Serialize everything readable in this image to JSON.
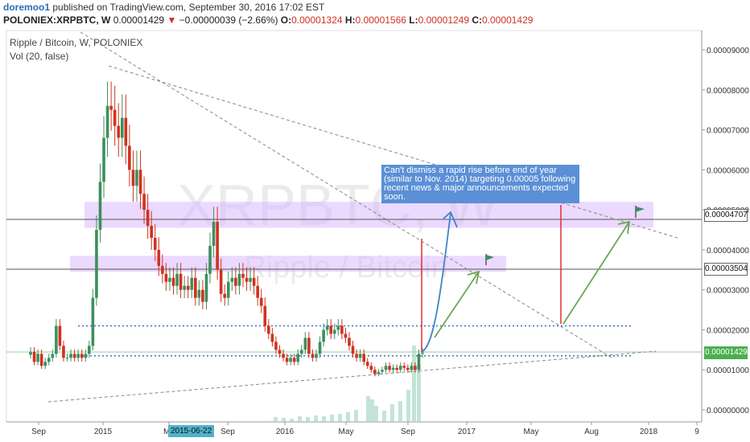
{
  "header": {
    "user": "doremoo1",
    "published": "published on TradingView.com, September 30, 2016 17:02 EST",
    "symbol": "POLONIEX:XRPBTC, W",
    "last": "0.00001429",
    "change_arrow": "▼",
    "change": "−0.00000039 (−2.66%)",
    "o_label": "O:",
    "o": "0.00001324",
    "h_label": "H:",
    "h": "0.00001566",
    "l_label": "L:",
    "l": "0.00001249",
    "c_label": "C:",
    "c": "0.00001429"
  },
  "legend": {
    "title": "Ripple / Bitcoin, W, POLONIEX",
    "indicator": "Vol (20, false)"
  },
  "watermark": {
    "symbol": "XRPBTC, W",
    "name": "Ripple / Bitcoin"
  },
  "annotation": "Can't dismiss a rapid rise before end of year (similar to Nov. 2014) targeting 0.00005 following recent news & major announcements expected soon.",
  "price_labels": [
    {
      "value": "0.00004707",
      "style": "plain"
    },
    {
      "value": "0.00003504",
      "style": "plain"
    },
    {
      "value": "0.00001429",
      "style": "green"
    }
  ],
  "x_highlight": "2015-06-22",
  "colors": {
    "up": "#3d8f5d",
    "down": "#d0321f",
    "zone": "#d9b3ff",
    "volume": "#a9d9c4",
    "dotted": "#3f6fc8",
    "arrow_green": "#6aa84f",
    "arrow_blue": "#3d85c6"
  },
  "chart_data": {
    "type": "candlestick",
    "interval": "weekly",
    "y_axis": {
      "min": 0,
      "max": 9.5e-05,
      "ticks": [
        "0.00009000",
        "0.00008000",
        "0.00007000",
        "0.00006000",
        "0.00005000",
        "0.00004000",
        "0.00003000",
        "0.00002000",
        "0.00001000",
        "0.00000000"
      ]
    },
    "x_ticks": [
      "Sep",
      "2015",
      "Ma",
      "Sep",
      "2016",
      "May",
      "Sep",
      "2017",
      "May",
      "Aug",
      "2018",
      "9"
    ],
    "close_series": [
      1.45e-05,
      1.2e-05,
      1.4e-05,
      1.1e-05,
      1.2e-05,
      1.3e-05,
      1.4e-05,
      2.1e-05,
      1.6e-05,
      1.3e-05,
      1.3e-05,
      1.4e-05,
      1.3e-05,
      1.4e-05,
      1.3e-05,
      1.4e-05,
      1.6e-05,
      2.8e-05,
      4.5e-05,
      5.7e-05,
      6.8e-05,
      7.6e-05,
      7.5e-05,
      7.1e-05,
      6.8e-05,
      7.3e-05,
      6.6e-05,
      6e-05,
      5.6e-05,
      6e-05,
      5.4e-05,
      5e-05,
      4.6e-05,
      4.3e-05,
      4e-05,
      3.6e-05,
      3.4e-05,
      3.2e-05,
      3.3e-05,
      3.1e-05,
      3.4e-05,
      3e-05,
      3.1e-05,
      3e-05,
      3.3e-05,
      2.8e-05,
      3e-05,
      2.7e-05,
      3.4e-05,
      4.1e-05,
      4.7e-05,
      3.5e-05,
      2.9e-05,
      2.8e-05,
      3.2e-05,
      3.3e-05,
      3.1e-05,
      3.4e-05,
      3.3e-05,
      3.2e-05,
      3.3e-05,
      3.1e-05,
      2.8e-05,
      2.6e-05,
      2.1e-05,
      1.9e-05,
      1.7e-05,
      1.5e-05,
      1.4e-05,
      1.3e-05,
      1.2e-05,
      1.3e-05,
      1.2e-05,
      1.4e-05,
      1.5e-05,
      1.8e-05,
      1.4e-05,
      1.3e-05,
      1.4e-05,
      1.7e-05,
      2e-05,
      2.1e-05,
      1.9e-05,
      2e-05,
      2.1e-05,
      1.9e-05,
      1.8e-05,
      1.6e-05,
      1.4e-05,
      1.3e-05,
      1.4e-05,
      1.2e-05,
      1.1e-05,
      1e-05,
      9e-06,
      9.5e-06,
      1e-05,
      1.1e-05,
      1e-05,
      1.05e-05,
      1e-05,
      1.1e-05,
      1.05e-05,
      1e-05,
      1.1e-05,
      1e-05,
      1.4e-05,
      1.429e-05
    ],
    "key_levels": {
      "resistance_zone_upper": [
        4.55e-05,
        5.2e-05
      ],
      "resistance_zone_lower": [
        3.45e-05,
        3.85e-05
      ],
      "dotted_upper": 2.1e-05,
      "dotted_lower": 1.35e-05
    }
  }
}
